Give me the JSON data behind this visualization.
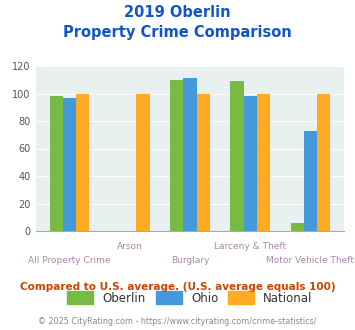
{
  "title_line1": "2019 Oberlin",
  "title_line2": "Property Crime Comparison",
  "categories": [
    "All Property Crime",
    "Arson",
    "Burglary",
    "Larceny & Theft",
    "Motor Vehicle Theft"
  ],
  "oberlin": [
    98,
    0,
    110,
    109,
    6
  ],
  "ohio": [
    97,
    0,
    111,
    98,
    73
  ],
  "national": [
    100,
    100,
    100,
    100,
    100
  ],
  "color_oberlin": "#77bb44",
  "color_ohio": "#4499dd",
  "color_national": "#ffaa22",
  "ylim": [
    0,
    120
  ],
  "yticks": [
    0,
    20,
    40,
    60,
    80,
    100,
    120
  ],
  "background_color": "#e8f0f0",
  "title_color": "#1155cc",
  "xlabel_color": "#aa88aa",
  "footer_text": "Compared to U.S. average. (U.S. average equals 100)",
  "footer_color": "#cc4400",
  "credit_text": "© 2025 CityRating.com - https://www.cityrating.com/crime-statistics/",
  "credit_color": "#888888",
  "legend_labels": [
    "Oberlin",
    "Ohio",
    "National"
  ],
  "bar_width": 0.22
}
